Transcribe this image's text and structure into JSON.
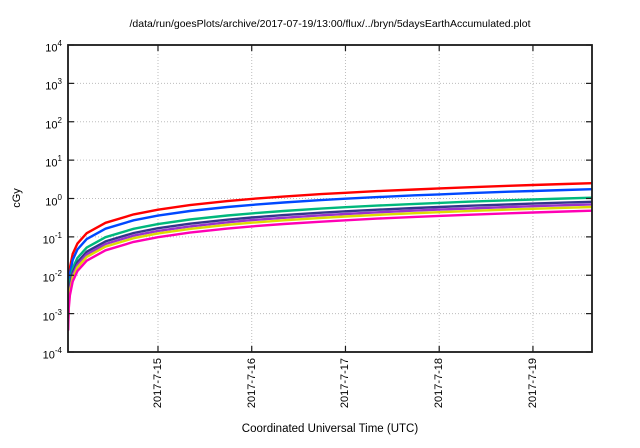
{
  "chart_data": {
    "type": "line",
    "title": "/data/run/goesPlots/archive/2017-07-19/13:00/flux/../bryn/5daysEarthAccumulated.plot",
    "xlabel": "Coordinated Universal Time (UTC)",
    "ylabel": "cGy",
    "y_scale": "log10",
    "ylim_exponents": [
      -4,
      4
    ],
    "y_tick_base": "10",
    "y_tick_exponents": [
      "4",
      "3",
      "2",
      "1",
      "0",
      "-1",
      "-2",
      "-3",
      "-4"
    ],
    "x_tick_labels": [
      "2017-7-15",
      "2017-7-16",
      "2017-7-17",
      "2017-7-18",
      "2017-7-19"
    ],
    "x_tick_days": [
      0.96,
      1.96,
      2.96,
      3.96,
      4.96
    ],
    "x_range_days": [
      0,
      5.59
    ],
    "grid": "dotted",
    "legend": "none",
    "t_days": [
      0.002,
      0.008,
      0.02,
      0.05,
      0.1,
      0.2,
      0.4,
      0.7,
      0.96,
      1.3,
      1.7,
      1.96,
      2.3,
      2.7,
      2.96,
      3.3,
      3.7,
      3.96,
      4.3,
      4.7,
      4.96,
      5.3,
      5.59
    ],
    "series": [
      {
        "name": "red",
        "color": "#ff0000",
        "final_cgy": 2.5,
        "values": [
          0.00198,
          0.00689,
          0.0157,
          0.0359,
          0.0669,
          0.125,
          0.233,
          0.385,
          0.512,
          0.673,
          0.856,
          0.974,
          1.12,
          1.3,
          1.41,
          1.56,
          1.72,
          1.83,
          1.97,
          2.14,
          2.25,
          2.38,
          2.5
        ]
      },
      {
        "name": "blue",
        "color": "#0048ff",
        "final_cgy": 1.75,
        "values": [
          0.00138,
          0.00482,
          0.011,
          0.0251,
          0.0468,
          0.0874,
          0.163,
          0.27,
          0.358,
          0.471,
          0.599,
          0.681,
          0.787,
          0.909,
          0.988,
          1.09,
          1.21,
          1.28,
          1.38,
          1.5,
          1.57,
          1.67,
          1.75
        ]
      },
      {
        "name": "green",
        "color": "#00b87c",
        "final_cgy": 1.05,
        "values": [
          0.00083,
          0.00289,
          0.00659,
          0.0151,
          0.0281,
          0.0525,
          0.0979,
          0.162,
          0.215,
          0.283,
          0.36,
          0.409,
          0.472,
          0.545,
          0.593,
          0.653,
          0.724,
          0.77,
          0.829,
          0.898,
          0.943,
          1.0,
          1.05
        ]
      },
      {
        "name": "navy",
        "color": "#34348c",
        "final_cgy": 0.82,
        "values": [
          0.000648,
          0.00226,
          0.00515,
          0.0118,
          0.0219,
          0.041,
          0.0764,
          0.126,
          0.168,
          0.221,
          0.281,
          0.319,
          0.369,
          0.426,
          0.463,
          0.51,
          0.566,
          0.601,
          0.648,
          0.702,
          0.736,
          0.782,
          0.82
        ]
      },
      {
        "name": "purple",
        "color": "#9932cc",
        "final_cgy": 0.7,
        "values": [
          0.000553,
          0.00193,
          0.0044,
          0.01,
          0.0187,
          0.035,
          0.0652,
          0.108,
          0.143,
          0.188,
          0.24,
          0.273,
          0.315,
          0.364,
          0.395,
          0.436,
          0.483,
          0.513,
          0.553,
          0.599,
          0.629,
          0.667,
          0.7
        ]
      },
      {
        "name": "yellow",
        "color": "#dcdc00",
        "final_cgy": 0.6,
        "values": [
          0.000474,
          0.00165,
          0.00377,
          0.0086,
          0.0161,
          0.03,
          0.0559,
          0.0925,
          0.123,
          0.161,
          0.206,
          0.234,
          0.27,
          0.312,
          0.339,
          0.373,
          0.414,
          0.44,
          0.474,
          0.513,
          0.539,
          0.572,
          0.6
        ]
      },
      {
        "name": "magenta",
        "color": "#ff00b4",
        "final_cgy": 0.48,
        "values": [
          0.000379,
          0.00132,
          0.00301,
          0.00688,
          0.0128,
          0.024,
          0.0447,
          0.074,
          0.0983,
          0.129,
          0.164,
          0.187,
          0.216,
          0.249,
          0.271,
          0.299,
          0.331,
          0.352,
          0.379,
          0.411,
          0.431,
          0.458,
          0.48
        ]
      }
    ],
    "colors": {
      "background": "#ffffff",
      "axis": "#1a1a1a",
      "grid": "#bdbdbd",
      "text": "#000000"
    }
  }
}
